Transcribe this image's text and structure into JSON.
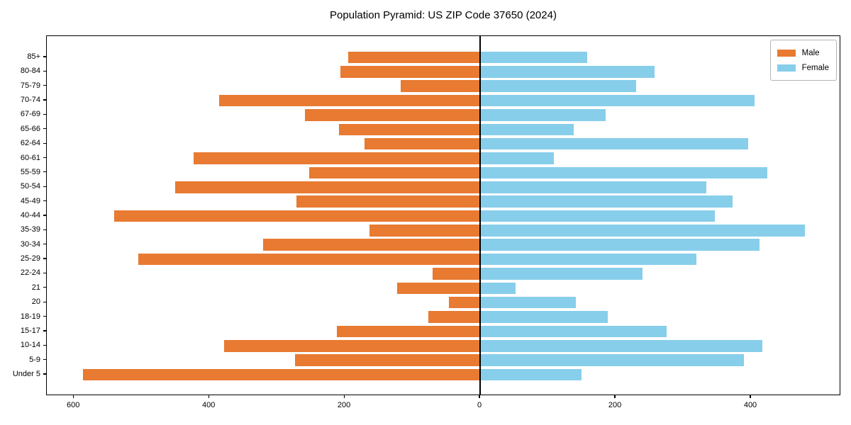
{
  "chart_data": {
    "type": "bar",
    "variant": "population-pyramid",
    "title": "Population Pyramid: US ZIP Code 37650 (2024)",
    "orientation": "horizontal",
    "grid": false,
    "categories_top_to_bottom": [
      "85+",
      "80-84",
      "75-79",
      "70-74",
      "67-69",
      "65-66",
      "62-64",
      "60-61",
      "55-59",
      "50-54",
      "45-49",
      "40-44",
      "35-39",
      "30-34",
      "25-29",
      "22-24",
      "21",
      "20",
      "18-19",
      "15-17",
      "10-14",
      "5-9",
      "Under 5"
    ],
    "series": [
      {
        "name": "Male",
        "side": "left",
        "color": "#e87a32",
        "values": [
          195,
          206,
          117,
          385,
          259,
          209,
          171,
          423,
          253,
          450,
          271,
          541,
          163,
          321,
          505,
          70,
          123,
          46,
          77,
          212,
          378,
          273,
          587
        ]
      },
      {
        "name": "Female",
        "side": "right",
        "color": "#87ceeb",
        "values": [
          158,
          258,
          230,
          405,
          185,
          138,
          396,
          109,
          424,
          334,
          373,
          347,
          480,
          413,
          319,
          240,
          52,
          141,
          188,
          275,
          417,
          390,
          150
        ]
      }
    ],
    "xlim": [
      -640,
      533
    ],
    "x_ticks": [
      -600,
      -400,
      -200,
      0,
      200,
      400
    ],
    "x_tick_labels": [
      "600",
      "400",
      "200",
      "0",
      "200",
      "400"
    ],
    "zero_axis_line_color": "#000000",
    "legend": {
      "position": "upper right",
      "entries": [
        "Male",
        "Female"
      ]
    }
  }
}
